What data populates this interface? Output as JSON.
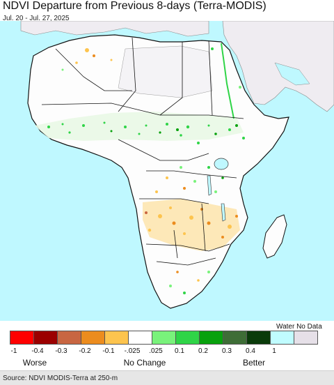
{
  "title": "NDVI Departure from Previous 8-days (Terra-MODIS)",
  "date_range": "Jul. 20 - Jul. 27, 2025",
  "legend": {
    "water_no_data_label": "Water No Data",
    "colors": [
      "#ff0000",
      "#9b0000",
      "#c86642",
      "#ec8c1e",
      "#fdc44e",
      "#ffffff",
      "#79f27b",
      "#2fd447",
      "#08a10d",
      "#3e6d36",
      "#0a3b0a",
      "#c0fcff",
      "#e6e0e8"
    ],
    "ticks": [
      "-1",
      "-0.4",
      "-0.3",
      "-0.2",
      "-0.1",
      "-.025",
      ".025",
      "0.1",
      "0.2",
      "0.3",
      "0.4",
      "1"
    ],
    "worse_label": "Worse",
    "no_change_label": "No Change",
    "better_label": "Better"
  },
  "source": "Source: NDVI MODIS-Terra at 250-m",
  "colors": {
    "ocean": "#bff8ff",
    "no_data_land": "#efecf1",
    "land_base": "#fdfdfd",
    "border": "#222222"
  }
}
